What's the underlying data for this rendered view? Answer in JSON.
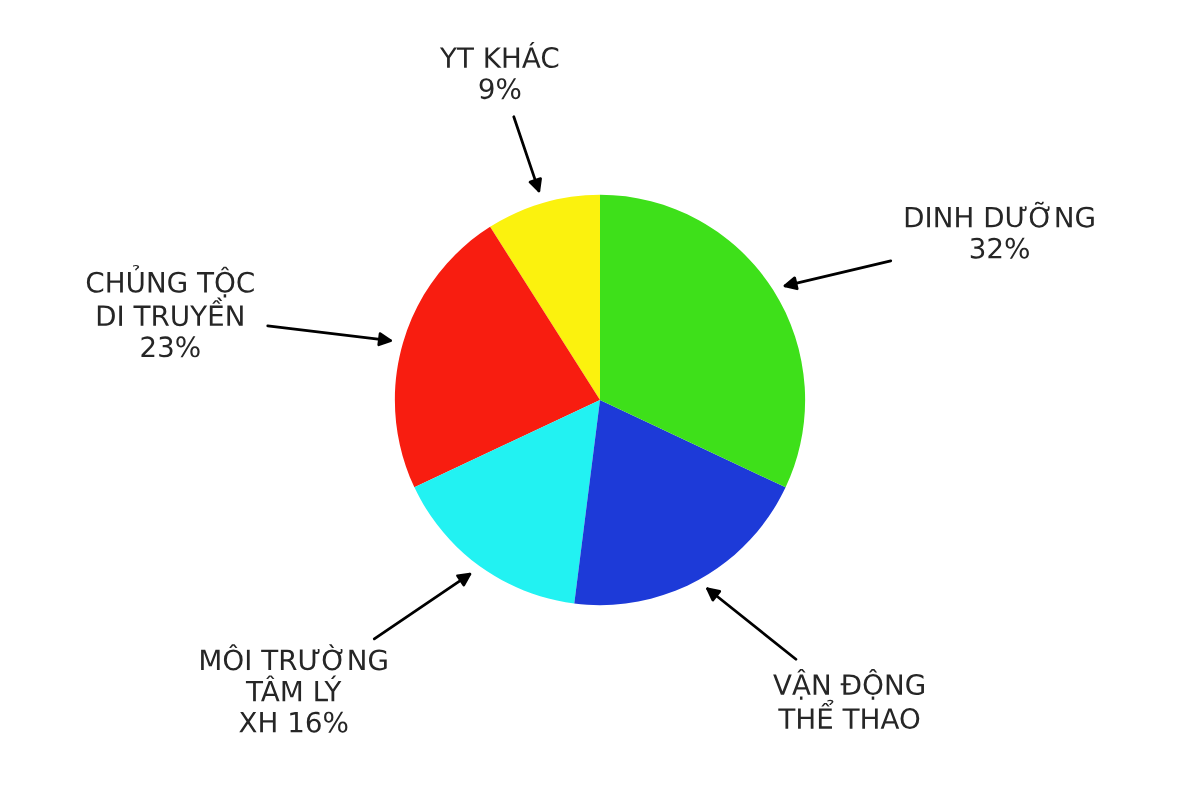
{
  "chart_data": {
    "type": "pie",
    "categories": [
      "YT KHÁC",
      "CHỦNG TỘC\nDI TRUYỀN",
      "MÔI TRƯỜNG\nTÂM LÝ\nXH",
      "VẬN ĐỘNG\nTHỂ THAO",
      "DINH DƯỠNG"
    ],
    "values": [
      9,
      23,
      16,
      20,
      32
    ],
    "colors": [
      "#fbf20e",
      "#f81d10",
      "#22f2f2",
      "#1d3ad8",
      "#3ee01a"
    ],
    "value_labels": [
      "9%",
      "23%",
      "16%",
      null,
      "32%"
    ]
  }
}
